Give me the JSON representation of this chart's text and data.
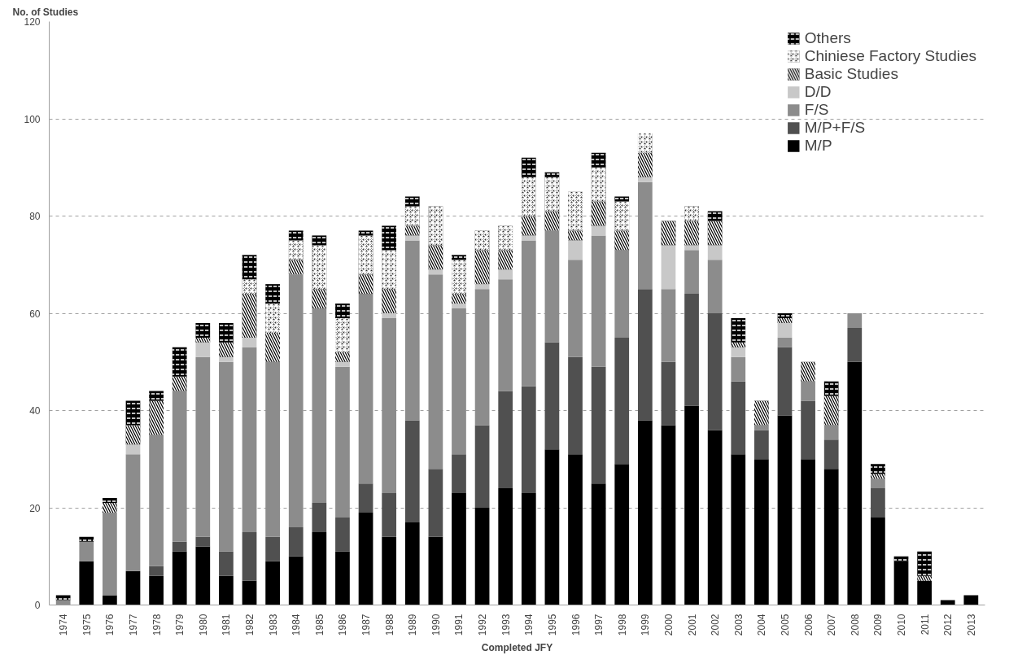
{
  "chart_data": {
    "type": "bar",
    "stacked": true,
    "xlabel": "Completed JFY",
    "ylabel": "No. of Studies",
    "categories": [
      "1974",
      "1975",
      "1976",
      "1977",
      "1978",
      "1979",
      "1980",
      "1981",
      "1982",
      "1983",
      "1984",
      "1985",
      "1986",
      "1987",
      "1988",
      "1989",
      "1990",
      "1991",
      "1992",
      "1993",
      "1994",
      "1995",
      "1996",
      "1997",
      "1998",
      "1999",
      "2000",
      "2001",
      "2002",
      "2003",
      "2004",
      "2005",
      "2006",
      "2007",
      "2008",
      "2009",
      "2010",
      "2011",
      "2012",
      "2013"
    ],
    "series": [
      {
        "name": "M/P",
        "color": "#000000",
        "values": [
          0,
          9,
          2,
          7,
          6,
          11,
          12,
          6,
          5,
          9,
          10,
          15,
          11,
          19,
          14,
          17,
          14,
          23,
          20,
          24,
          23,
          32,
          31,
          25,
          29,
          38,
          37,
          41,
          36,
          31,
          30,
          39,
          30,
          28,
          50,
          18,
          9,
          5,
          1,
          2
        ]
      },
      {
        "name": "M/P+F/S",
        "color": "#505050",
        "values": [
          0,
          0,
          0,
          0,
          2,
          2,
          2,
          5,
          10,
          5,
          6,
          6,
          7,
          6,
          9,
          21,
          14,
          8,
          17,
          20,
          22,
          22,
          20,
          24,
          26,
          27,
          13,
          23,
          24,
          15,
          6,
          14,
          12,
          6,
          7,
          6,
          0,
          0,
          0,
          0
        ]
      },
      {
        "name": "F/S",
        "color": "#8c8c8c",
        "values": [
          1,
          4,
          17,
          24,
          27,
          31,
          37,
          39,
          38,
          36,
          52,
          40,
          31,
          39,
          36,
          37,
          40,
          30,
          28,
          23,
          30,
          23,
          20,
          27,
          18,
          22,
          15,
          9,
          11,
          5,
          1,
          2,
          4,
          3,
          3,
          2,
          0,
          0,
          0,
          0
        ]
      },
      {
        "name": "D/D",
        "color": "#c8c8c8",
        "values": [
          0,
          0,
          0,
          2,
          0,
          0,
          3,
          1,
          2,
          0,
          0,
          0,
          1,
          0,
          1,
          1,
          1,
          1,
          1,
          2,
          1,
          0,
          4,
          2,
          0,
          1,
          9,
          1,
          3,
          2,
          0,
          3,
          0,
          0,
          0,
          0,
          0,
          0,
          0,
          0
        ]
      },
      {
        "name": "Basic Studies",
        "color": "#000000",
        "values": [
          0,
          0,
          2,
          4,
          7,
          3,
          1,
          3,
          9,
          6,
          3,
          4,
          2,
          4,
          5,
          2,
          5,
          2,
          7,
          4,
          4,
          4,
          2,
          5,
          4,
          5,
          5,
          5,
          5,
          1,
          5,
          1,
          4,
          6,
          0,
          1,
          0,
          1,
          0,
          0
        ]
      },
      {
        "name": "Chiniese Factory Studies",
        "color": "#303030",
        "values": [
          0,
          0,
          0,
          0,
          0,
          0,
          0,
          0,
          3,
          6,
          4,
          9,
          7,
          8,
          8,
          4,
          8,
          7,
          4,
          5,
          8,
          7,
          8,
          7,
          6,
          4,
          0,
          3,
          0,
          0,
          0,
          0,
          0,
          0,
          0,
          0,
          0,
          0,
          0,
          0
        ]
      },
      {
        "name": "Others",
        "color": "#000000",
        "values": [
          1,
          1,
          1,
          5,
          2,
          6,
          3,
          4,
          5,
          4,
          2,
          2,
          3,
          1,
          5,
          2,
          0,
          1,
          0,
          0,
          4,
          1,
          0,
          3,
          1,
          0,
          0,
          0,
          2,
          5,
          0,
          1,
          0,
          3,
          0,
          2,
          1,
          5,
          0,
          0
        ]
      }
    ],
    "ylim": [
      0,
      120
    ],
    "yticks": [
      0,
      20,
      40,
      60,
      80,
      100,
      120
    ],
    "grid": "y",
    "legend": "top right"
  }
}
